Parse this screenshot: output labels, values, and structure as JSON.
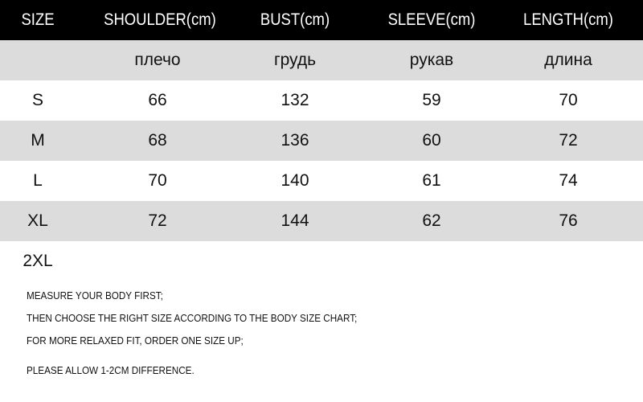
{
  "headers": [
    "SIZE",
    "SHOULDER(cm)",
    "BUST(cm)",
    "SLEEVE(cm)",
    "LENGTH(cm)"
  ],
  "translations": [
    "",
    "плечо",
    "грудь",
    "рукав",
    "длина"
  ],
  "rows": [
    [
      "S",
      "66",
      "132",
      "59",
      "70"
    ],
    [
      "M",
      "68",
      "136",
      "60",
      "72"
    ],
    [
      "L",
      "70",
      "140",
      "61",
      "74"
    ],
    [
      "XL",
      "72",
      "144",
      "62",
      "76"
    ],
    [
      "2XL",
      "",
      "",
      "",
      ""
    ]
  ],
  "notes": [
    "MEASURE YOUR BODY FIRST;",
    "THEN CHOOSE THE RIGHT SIZE ACCORDING TO THE BODY SIZE CHART;",
    "FOR MORE RELAXED FIT, ORDER ONE SIZE UP;",
    "PLEASE ALLOW 1-2CM DIFFERENCE."
  ],
  "colors": {
    "header_bg": "#000000",
    "stripe_bg": "#dcdcdc"
  }
}
